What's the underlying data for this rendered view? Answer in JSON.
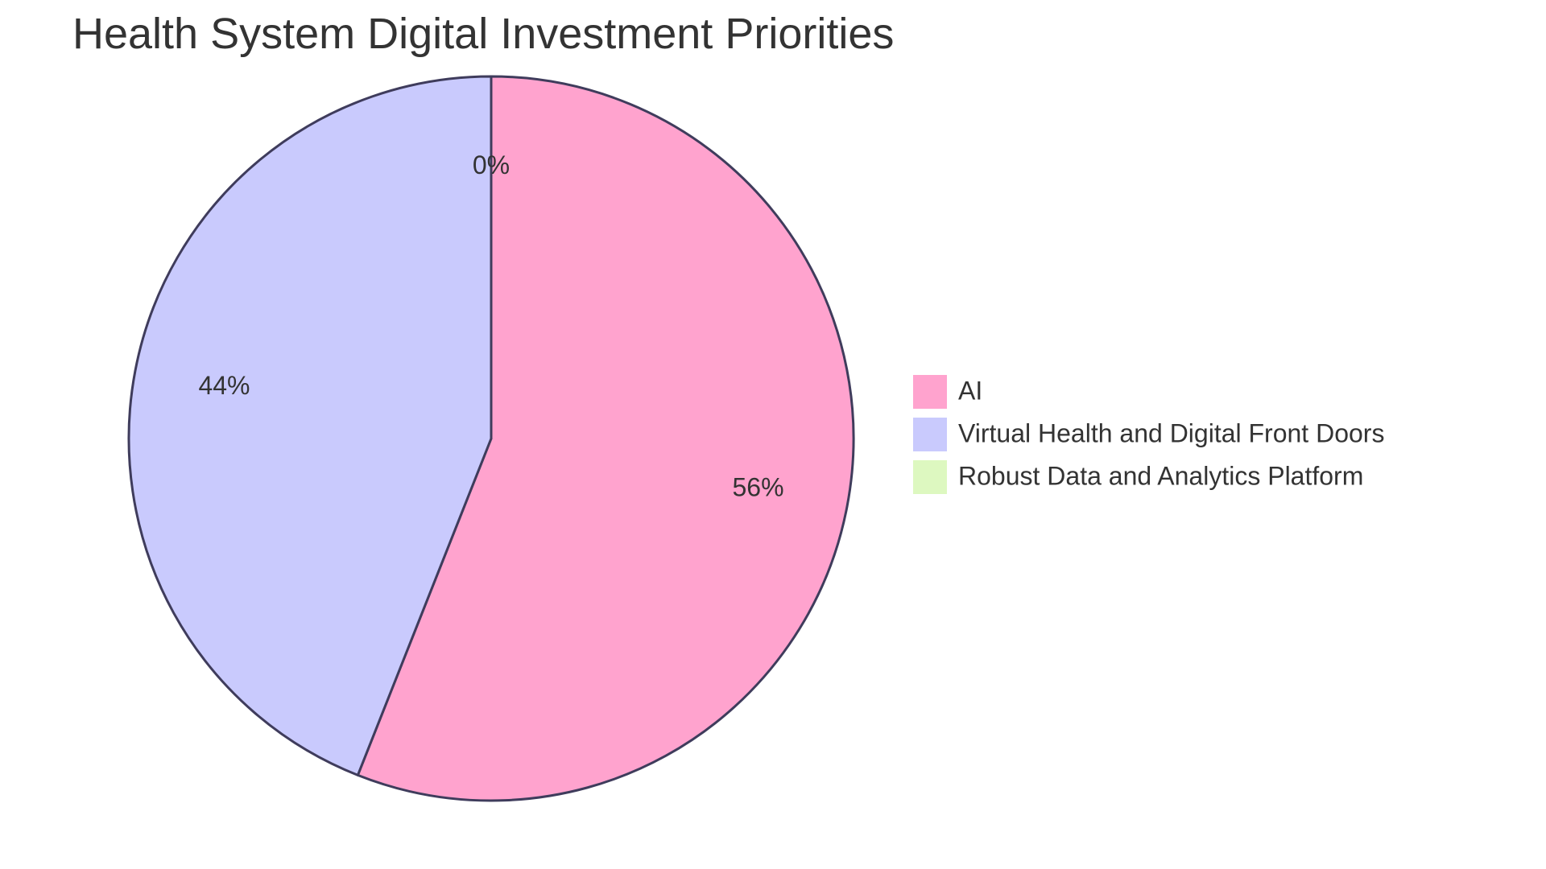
{
  "chart_data": {
    "type": "pie",
    "title": "Health System Digital Investment Priorities",
    "legend_position": "right",
    "slices": [
      {
        "name": "AI",
        "value": 56,
        "label": "56%",
        "color": "#FFA3CE"
      },
      {
        "name": "Virtual Health and Digital Front Doors",
        "value": 44,
        "label": "44%",
        "color": "#C9CAFD"
      },
      {
        "name": "Robust Data and Analytics Platform",
        "value": 0,
        "label": "0%",
        "color": "#DDF8C0"
      }
    ],
    "outline_color": "#3F3C5C"
  }
}
